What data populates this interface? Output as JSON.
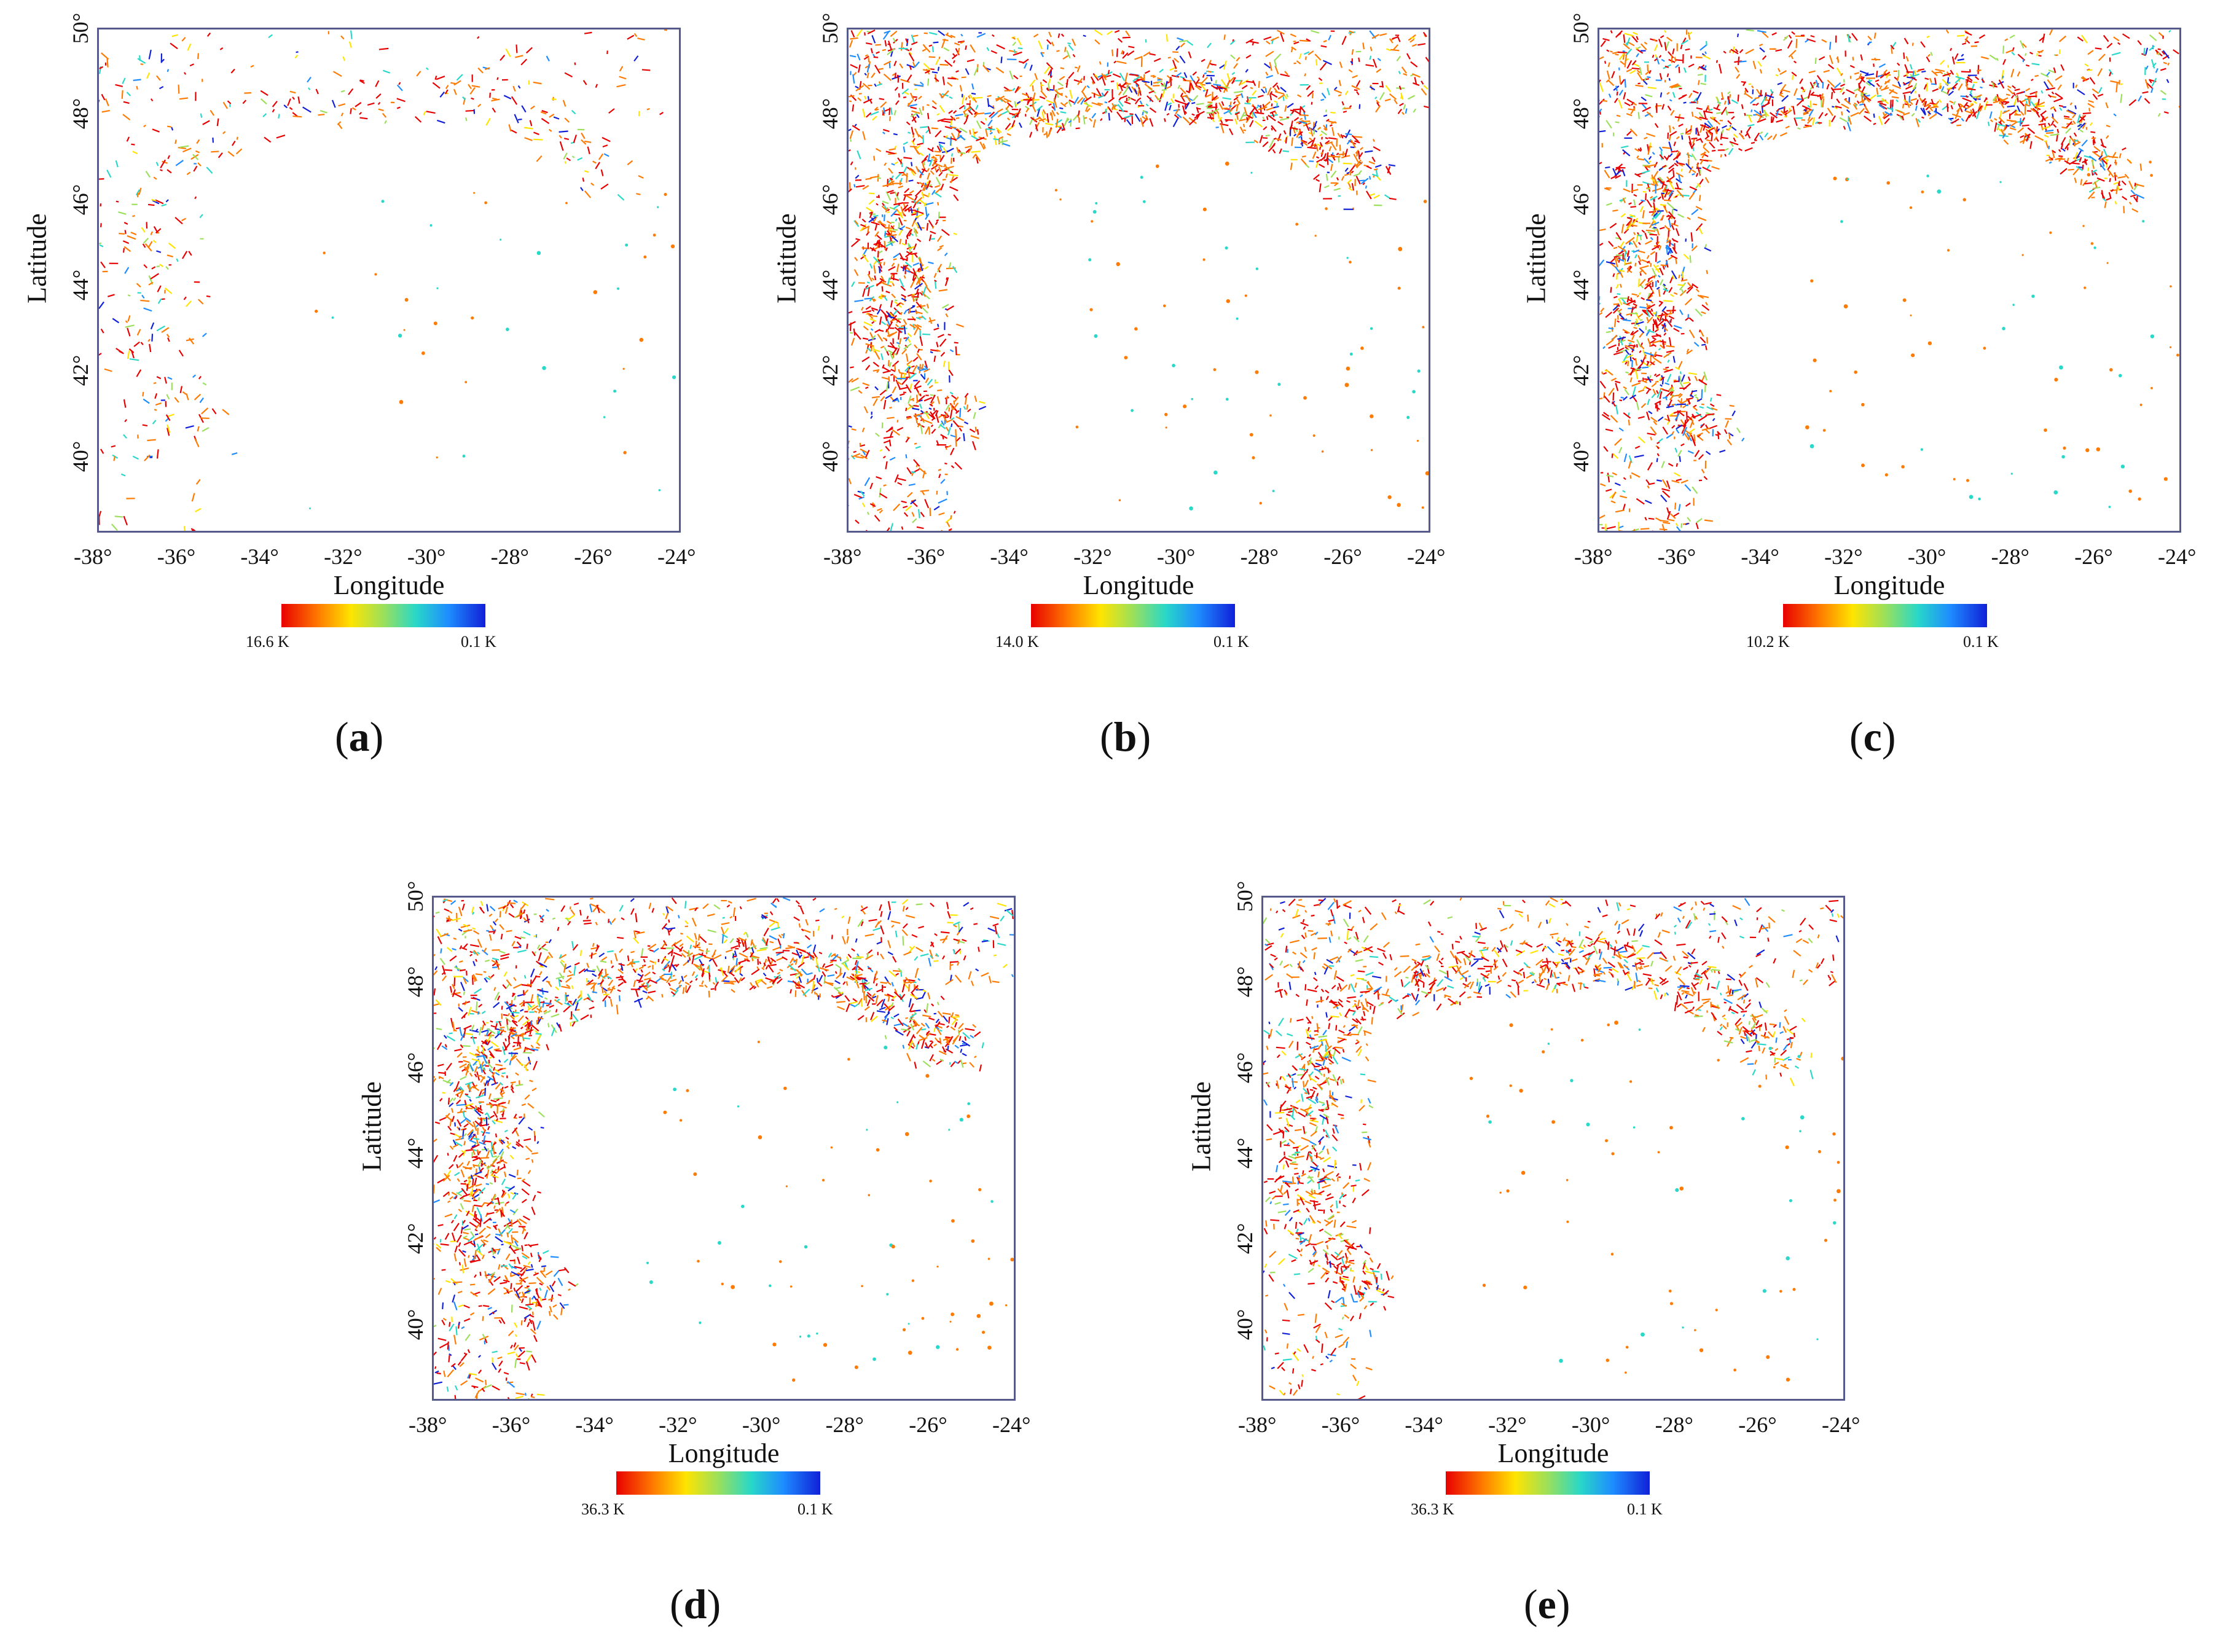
{
  "axis": {
    "x_ticks": [
      "-38°",
      "-36°",
      "-34°",
      "-32°",
      "-30°",
      "-28°",
      "-26°",
      "-24°"
    ],
    "y_ticks": [
      "40°",
      "42°",
      "44°",
      "46°",
      "48°",
      "50°"
    ],
    "xlabel": "Longitude",
    "ylabel": "Latitude",
    "lon_range": [
      -38,
      -24
    ],
    "lat_range": [
      38.2,
      50
    ]
  },
  "colorbar_colors": [
    "#e80000",
    "#ff7a00",
    "#ffe400",
    "#9be05a",
    "#28d8c8",
    "#1e8cff",
    "#1020d8"
  ],
  "panels": [
    {
      "id": "a",
      "caption_open": "(",
      "caption_letter": "a",
      "caption_close": ")",
      "cbar_max": "16.6 K",
      "cbar_min": "0.1 K",
      "density": "sparse"
    },
    {
      "id": "b",
      "caption_open": "(",
      "caption_letter": "b",
      "caption_close": ")",
      "cbar_max": "14.0 K",
      "cbar_min": "0.1 K",
      "density": "dense"
    },
    {
      "id": "c",
      "caption_open": "(",
      "caption_letter": "c",
      "caption_close": ")",
      "cbar_max": "10.2 K",
      "cbar_min": "0.1 K",
      "density": "dense"
    },
    {
      "id": "d",
      "caption_open": "(",
      "caption_letter": "d",
      "caption_close": ")",
      "cbar_max": "36.3 K",
      "cbar_min": "0.1 K",
      "density": "dense"
    },
    {
      "id": "e",
      "caption_open": "(",
      "caption_letter": "e",
      "caption_close": ")",
      "cbar_max": "36.3 K",
      "cbar_min": "0.1 K",
      "density": "medium"
    }
  ]
}
